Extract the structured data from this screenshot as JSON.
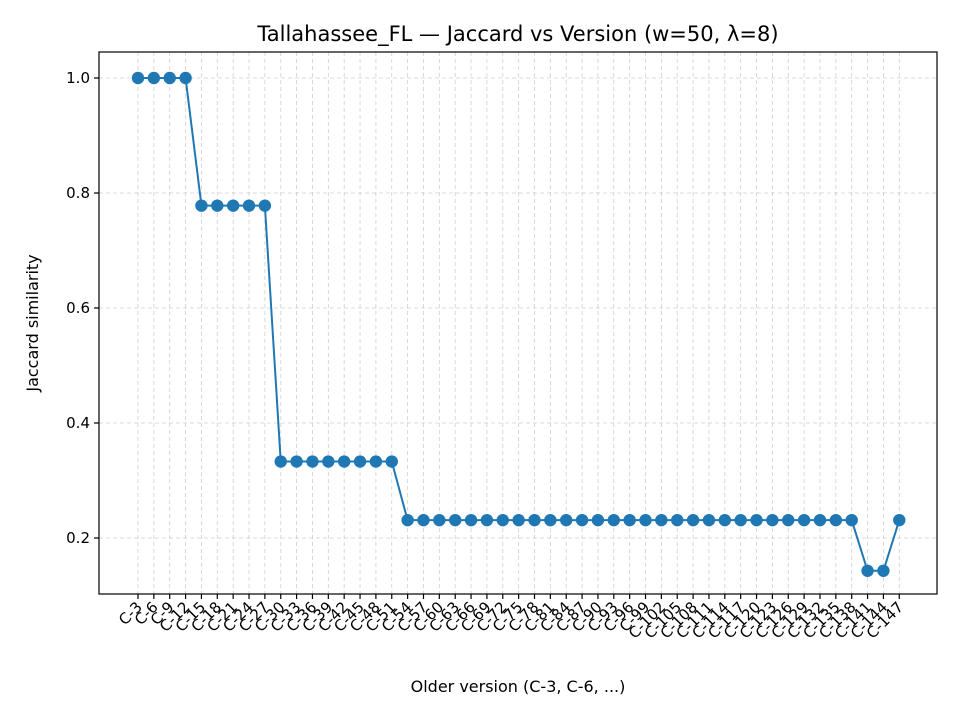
{
  "chart_data": {
    "type": "line",
    "title": "Tallahassee_FL — Jaccard vs Version (w=50, λ=8)",
    "xlabel": "Older version (C-3, C-6, ...)",
    "ylabel": "Jaccard similarity",
    "ylim": [
      0.1,
      1.05
    ],
    "yticks": [
      0.2,
      0.4,
      0.6,
      0.8,
      1.0
    ],
    "ytick_labels": [
      "0.2",
      "0.4",
      "0.6",
      "0.8",
      "1.0"
    ],
    "grid": true,
    "categories": [
      "C-3",
      "C-6",
      "C-9",
      "C-12",
      "C-15",
      "C-18",
      "C-21",
      "C-24",
      "C-27",
      "C-30",
      "C-33",
      "C-36",
      "C-39",
      "C-42",
      "C-45",
      "C-48",
      "C-51",
      "C-54",
      "C-57",
      "C-60",
      "C-63",
      "C-66",
      "C-69",
      "C-72",
      "C-75",
      "C-78",
      "C-81",
      "C-84",
      "C-87",
      "C-90",
      "C-93",
      "C-96",
      "C-99",
      "C-102",
      "C-105",
      "C-108",
      "C-111",
      "C-114",
      "C-117",
      "C-120",
      "C-123",
      "C-126",
      "C-129",
      "C-132",
      "C-135",
      "C-138",
      "C-141",
      "C-144",
      "C-147"
    ],
    "series": [
      {
        "values": [
          1.0,
          1.0,
          1.0,
          1.0,
          0.778,
          0.778,
          0.778,
          0.778,
          0.778,
          0.333,
          0.333,
          0.333,
          0.333,
          0.333,
          0.333,
          0.333,
          0.333,
          0.231,
          0.231,
          0.231,
          0.231,
          0.231,
          0.231,
          0.231,
          0.231,
          0.231,
          0.231,
          0.231,
          0.231,
          0.231,
          0.231,
          0.231,
          0.231,
          0.231,
          0.231,
          0.231,
          0.231,
          0.231,
          0.231,
          0.231,
          0.231,
          0.231,
          0.231,
          0.231,
          0.231,
          0.231,
          0.143,
          0.143,
          0.231
        ]
      }
    ],
    "colors": {
      "series": "#1f77b4"
    }
  }
}
